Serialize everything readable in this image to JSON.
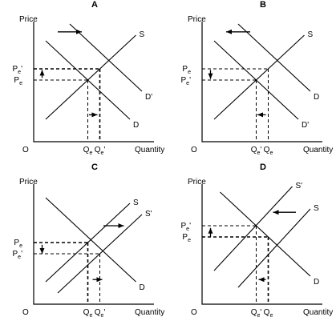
{
  "chart_data": [
    {
      "type": "line",
      "title": "A",
      "ylabel": "Price",
      "xlabel": "Quantity",
      "origin": "O",
      "curves": [
        {
          "name": "S",
          "label": "S",
          "points": [
            [
              1,
              2
            ],
            [
              8.5,
              9.5
            ]
          ]
        },
        {
          "name": "D",
          "label": "D",
          "points": [
            [
              1,
              9
            ],
            [
              8,
              2
            ]
          ]
        },
        {
          "name": "D'",
          "label": "D'",
          "points": [
            [
              3,
              10.5
            ],
            [
              9,
              4.5
            ]
          ]
        }
      ],
      "guides": [
        {
          "x": 4.5,
          "y": 5.5,
          "x_label": "Qe",
          "x_sub": "e",
          "y_label": "Pe",
          "y_sub": "e",
          "bold": false
        },
        {
          "x": 5.5,
          "y": 6.5,
          "x_label": "Qe'",
          "x_sub": "e",
          "x_prime": true,
          "y_label": "Pe'",
          "y_sub": "e",
          "y_prime": true,
          "bold": true
        }
      ],
      "arrows": [
        {
          "from": [
            2,
            9.8
          ],
          "to": [
            4,
            9.8
          ]
        },
        {
          "from": [
            4.6,
            2.4
          ],
          "to": [
            5.3,
            2.4
          ]
        },
        {
          "from": [
            0.7,
            5.7
          ],
          "to": [
            0.7,
            6.4
          ]
        }
      ]
    },
    {
      "type": "line",
      "title": "B",
      "ylabel": "Price",
      "xlabel": "Quantity",
      "origin": "O",
      "curves": [
        {
          "name": "S",
          "label": "S",
          "points": [
            [
              1,
              2
            ],
            [
              8.5,
              9.5
            ]
          ]
        },
        {
          "name": "D",
          "label": "D",
          "points": [
            [
              3,
              10.5
            ],
            [
              9,
              4.5
            ]
          ]
        },
        {
          "name": "D'",
          "label": "D'",
          "points": [
            [
              1,
              9
            ],
            [
              8,
              2
            ]
          ]
        }
      ],
      "guides": [
        {
          "x": 5.5,
          "y": 6.5,
          "x_label": "Qe",
          "x_sub": "e",
          "y_label": "Pe",
          "y_sub": "e",
          "bold": false
        },
        {
          "x": 4.5,
          "y": 5.5,
          "x_label": "Qe'",
          "x_sub": "e",
          "x_prime": true,
          "y_label": "Pe'",
          "y_sub": "e",
          "y_prime": true,
          "bold": false
        }
      ],
      "arrows": [
        {
          "from": [
            4,
            9.8
          ],
          "to": [
            2,
            9.8
          ]
        },
        {
          "from": [
            5.3,
            2.4
          ],
          "to": [
            4.6,
            2.4
          ]
        },
        {
          "from": [
            0.7,
            6.4
          ],
          "to": [
            0.7,
            5.6
          ]
        }
      ]
    },
    {
      "type": "line",
      "title": "C",
      "ylabel": "Price",
      "xlabel": "Quantity",
      "origin": "O",
      "curves": [
        {
          "name": "S",
          "label": "S",
          "points": [
            [
              1,
              2
            ],
            [
              8,
              9
            ]
          ]
        },
        {
          "name": "S'",
          "label": "S'",
          "points": [
            [
              2,
              1
            ],
            [
              9,
              8
            ]
          ]
        },
        {
          "name": "D",
          "label": "D",
          "points": [
            [
              1,
              9.5
            ],
            [
              8.5,
              2
            ]
          ]
        }
      ],
      "guides": [
        {
          "x": 4.5,
          "y": 5.5,
          "x_label": "Qe",
          "x_sub": "e",
          "y_label": "Pe",
          "y_sub": "e",
          "bold": true
        },
        {
          "x": 5.5,
          "y": 4.5,
          "x_label": "Qe'",
          "x_sub": "e",
          "x_prime": true,
          "y_label": "Pe'",
          "y_sub": "e",
          "y_prime": true,
          "bold": false
        }
      ],
      "arrows": [
        {
          "from": [
            5.8,
            7
          ],
          "to": [
            7.5,
            7
          ]
        },
        {
          "from": [
            4.9,
            2.2
          ],
          "to": [
            5.7,
            2.2
          ]
        },
        {
          "from": [
            0.7,
            5.3
          ],
          "to": [
            0.7,
            4.5
          ]
        }
      ]
    },
    {
      "type": "line",
      "title": "D",
      "ylabel": "Price",
      "xlabel": "Quantity",
      "origin": "O",
      "curves": [
        {
          "name": "S'",
          "label": "S'",
          "points": [
            [
              1,
              3
            ],
            [
              7.5,
              10.5
            ]
          ]
        },
        {
          "name": "S",
          "label": "S",
          "points": [
            [
              3,
              1.5
            ],
            [
              9,
              8.5
            ]
          ]
        },
        {
          "name": "D",
          "label": "D",
          "points": [
            [
              1.5,
              10
            ],
            [
              9,
              2.5
            ]
          ]
        }
      ],
      "guides": [
        {
          "x": 4.5,
          "y": 7,
          "x_label": "Qe'",
          "x_sub": "e",
          "x_prime": true,
          "y_label": "Pe'",
          "y_sub": "e",
          "y_prime": true,
          "bold": false
        },
        {
          "x": 5.5,
          "y": 6,
          "x_label": "Qe",
          "x_sub": "e",
          "y_label": "Pe",
          "y_sub": "e",
          "bold": true
        }
      ],
      "arrows": [
        {
          "from": [
            7.8,
            8.2
          ],
          "to": [
            5.9,
            8.2
          ]
        },
        {
          "from": [
            5.3,
            2.2
          ],
          "to": [
            4.7,
            2.2
          ]
        },
        {
          "from": [
            0.7,
            6
          ],
          "to": [
            0.7,
            6.8
          ]
        }
      ]
    }
  ]
}
